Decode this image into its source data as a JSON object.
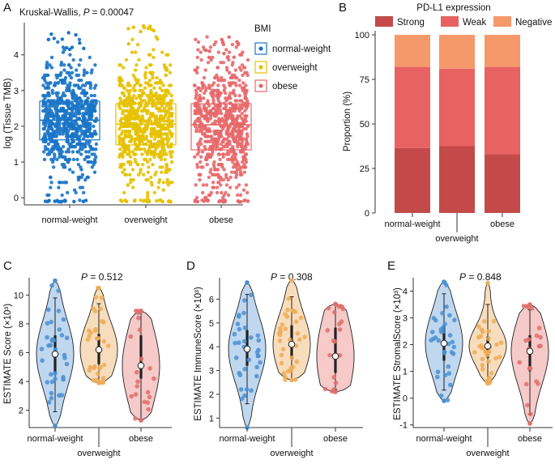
{
  "panels": {
    "A": {
      "letter": "A",
      "stat_prefix": "Kruskal-Wallis, ",
      "stat_p": "P",
      "stat_value": " = 0.00047",
      "legend_title": "BMI",
      "colors": [
        "#1a74c6",
        "#e6c100",
        "#e8686a"
      ]
    },
    "B": {
      "letter": "B",
      "legend_title": "PD-L1 expression"
    },
    "C": {
      "letter": "C",
      "p_label": "P",
      "p_value": " = 0.512"
    },
    "D": {
      "letter": "D",
      "p_label": "P",
      "p_value": " = 0.308"
    },
    "E": {
      "letter": "E",
      "p_label": "P",
      "p_value": " = 0.848"
    }
  },
  "chart_data": [
    {
      "id": "A",
      "type": "box",
      "title": "",
      "stat_label": "Kruskal-Wallis, P = 0.00047",
      "ylabel": "log (Tissue TMB)",
      "xlabel": "",
      "categories": [
        "normal-weight",
        "overweight",
        "obese"
      ],
      "ylim": [
        -0.2,
        4.9
      ],
      "yticks": [
        0,
        1,
        2,
        3,
        4
      ],
      "legend": {
        "title": "BMI",
        "placement": "right",
        "entries": [
          "normal-weight",
          "overweight",
          "obese"
        ]
      },
      "series": [
        {
          "name": "normal-weight",
          "q1": 1.62,
          "median": 2.17,
          "q3": 2.7,
          "min": -0.12,
          "max": 4.62
        },
        {
          "name": "overweight",
          "q1": 1.48,
          "median": 2.06,
          "q3": 2.63,
          "min": -0.12,
          "max": 4.85
        },
        {
          "name": "obese",
          "q1": 1.34,
          "median": 2.04,
          "q3": 2.63,
          "min": -0.12,
          "max": 4.5
        }
      ],
      "colors": [
        "#1a74c6",
        "#e6c100",
        "#e8686a"
      ]
    },
    {
      "id": "B",
      "type": "bar",
      "stacked": true,
      "title": "",
      "ylabel": "Proportion (%)",
      "categories": [
        "normal-weight",
        "overweight",
        "obese"
      ],
      "ylim": [
        0,
        100
      ],
      "yticks": [
        0,
        25,
        50,
        75,
        100
      ],
      "legend": {
        "title": "PD-L1 expression",
        "placement": "top"
      },
      "series": [
        {
          "name": "Strong",
          "values": [
            36.5,
            37.5,
            33
          ],
          "color": "#c44a4a"
        },
        {
          "name": "Weak",
          "values": [
            45.5,
            43.5,
            49
          ],
          "color": "#e86262"
        },
        {
          "name": "Negative",
          "values": [
            18,
            19,
            18
          ],
          "color": "#f5996b"
        }
      ]
    },
    {
      "id": "C",
      "type": "violin",
      "p_text": "P = 0.512",
      "ylabel": "ESTIMATE Score (×10³)",
      "categories": [
        "normal-weight",
        "overweight",
        "obese"
      ],
      "ylim": [
        0.8,
        11.2
      ],
      "yticks": [
        2,
        4,
        6,
        8,
        10
      ],
      "series": [
        {
          "name": "normal-weight",
          "min": 0.9,
          "max": 11.0,
          "q1": 4.6,
          "median": 5.9,
          "q3": 7.2,
          "whisker_low": 1.9,
          "whisker_high": 9.8,
          "color": "#a9c9ea"
        },
        {
          "name": "overweight",
          "min": 3.9,
          "max": 10.5,
          "q1": 5.2,
          "median": 6.2,
          "q3": 7.3,
          "whisker_low": 3.9,
          "whisker_high": 9.4,
          "color": "#f6d2a6"
        },
        {
          "name": "obese",
          "min": 1.3,
          "max": 8.9,
          "q1": 4.2,
          "median": 5.1,
          "q3": 7.2,
          "whisker_low": 1.4,
          "whisker_high": 8.8,
          "color": "#f2b8b5"
        }
      ]
    },
    {
      "id": "D",
      "type": "violin",
      "p_text": "P = 0.308",
      "ylabel": "ESTIMATE ImmuneScore (×10³)",
      "categories": [
        "normal-weight",
        "overweight",
        "obese"
      ],
      "ylim": [
        0.6,
        6.9
      ],
      "yticks": [
        1,
        2,
        3,
        4,
        5,
        6
      ],
      "series": [
        {
          "name": "normal-weight",
          "min": 0.6,
          "max": 6.7,
          "q1": 3.2,
          "median": 3.9,
          "q3": 4.7,
          "whisker_low": 1.6,
          "whisker_high": 6.2,
          "color": "#a9c9ea"
        },
        {
          "name": "overweight",
          "min": 2.6,
          "max": 6.8,
          "q1": 3.5,
          "median": 4.1,
          "q3": 4.9,
          "whisker_low": 2.6,
          "whisker_high": 6.1,
          "color": "#f6d2a6"
        },
        {
          "name": "obese",
          "min": 2.1,
          "max": 5.8,
          "q1": 2.9,
          "median": 3.6,
          "q3": 4.8,
          "whisker_low": 2.2,
          "whisker_high": 5.8,
          "color": "#f2b8b5"
        }
      ]
    },
    {
      "id": "E",
      "type": "violin",
      "p_text": "P = 0.848",
      "ylabel": "ESTIMATE StromalScore (×10³)",
      "categories": [
        "normal-weight",
        "overweight",
        "obese"
      ],
      "ylim": [
        -1.1,
        4.5
      ],
      "yticks": [
        -1,
        0,
        1,
        2,
        3,
        4
      ],
      "series": [
        {
          "name": "normal-weight",
          "min": -0.1,
          "max": 4.35,
          "q1": 1.4,
          "median": 2.05,
          "q3": 2.7,
          "whisker_low": 0.3,
          "whisker_high": 3.9,
          "color": "#a9c9ea"
        },
        {
          "name": "overweight",
          "min": 0.55,
          "max": 4.3,
          "q1": 1.5,
          "median": 1.95,
          "q3": 2.3,
          "whisker_low": 0.6,
          "whisker_high": 3.5,
          "color": "#f6d2a6"
        },
        {
          "name": "obese",
          "min": -0.95,
          "max": 3.5,
          "q1": 1.0,
          "median": 1.75,
          "q3": 2.35,
          "whisker_low": -0.6,
          "whisker_high": 3.3,
          "color": "#f2b8b5"
        }
      ]
    }
  ]
}
